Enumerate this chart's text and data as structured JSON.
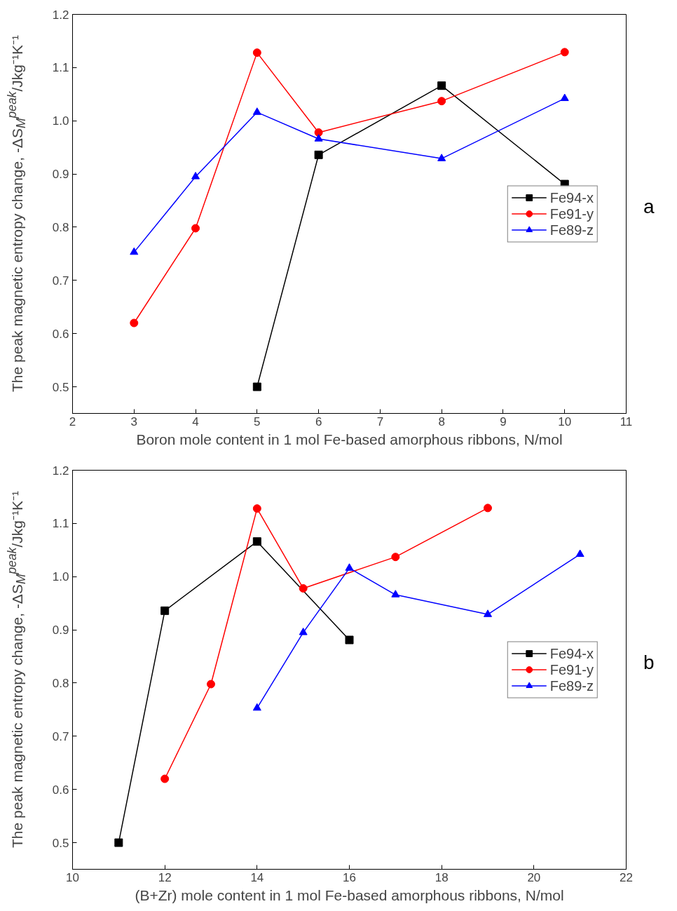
{
  "chart_data": [
    {
      "type": "line",
      "xlabel": "Boron mole content in 1 mol Fe-based amorphous ribbons, N/mol",
      "ylabel": "The peak magnetic entropy change, -ΔS$_{M}$$^{peak}$/Jkg⁻¹K⁻¹",
      "annotations": [
        "a"
      ],
      "xlim": [
        2,
        11
      ],
      "xticks": [
        2,
        3,
        4,
        5,
        6,
        7,
        8,
        9,
        10,
        11
      ],
      "ylim": [
        0.45,
        1.2
      ],
      "yticks": [
        0.5,
        0.6,
        0.7,
        0.8,
        0.9,
        {
          "value": 1,
          "label": "1.0"
        },
        1.1,
        1.2
      ],
      "grid": false,
      "legend": "right",
      "series": [
        {
          "name": "Fe94-x",
          "color": "#000000",
          "marker": "square",
          "x": [
            5,
            6,
            8,
            10
          ],
          "values": [
            0.5,
            0.936,
            1.066,
            0.881
          ]
        },
        {
          "name": "Fe91-y",
          "color": "#ff0000",
          "marker": "circle",
          "x": [
            3,
            4,
            5,
            6,
            8,
            10
          ],
          "values": [
            0.62,
            0.798,
            1.128,
            0.978,
            1.037,
            1.129
          ]
        },
        {
          "name": "Fe89-z",
          "color": "#0000ff",
          "marker": "triangle",
          "x": [
            3,
            4,
            5,
            6,
            8,
            10
          ],
          "values": [
            0.753,
            0.895,
            1.016,
            0.966,
            0.929,
            1.042
          ]
        }
      ]
    },
    {
      "type": "line",
      "xlabel": "(B+Zr) mole content in 1 mol Fe-based amorphous ribbons, N/mol",
      "ylabel": "The peak magnetic entropy change, -ΔS$_{M}$$^{peak}$/Jkg⁻¹K⁻¹",
      "annotations": [
        "b"
      ],
      "xlim": [
        10,
        22
      ],
      "xticks": [
        10,
        12,
        14,
        16,
        18,
        20,
        22
      ],
      "ylim": [
        0.45,
        1.2
      ],
      "yticks": [
        0.5,
        0.6,
        0.7,
        0.8,
        0.9,
        {
          "value": 1,
          "label": "1.0"
        },
        1.1,
        1.2
      ],
      "grid": false,
      "legend": "right",
      "series": [
        {
          "name": "Fe94-x",
          "color": "#000000",
          "marker": "square",
          "x": [
            11,
            12,
            14,
            16
          ],
          "values": [
            0.5,
            0.936,
            1.066,
            0.881
          ]
        },
        {
          "name": "Fe91-y",
          "color": "#ff0000",
          "marker": "circle",
          "x": [
            12,
            13,
            14,
            15,
            17,
            19
          ],
          "values": [
            0.62,
            0.798,
            1.128,
            0.978,
            1.037,
            1.129
          ]
        },
        {
          "name": "Fe89-z",
          "color": "#0000ff",
          "marker": "triangle",
          "x": [
            14,
            15,
            16,
            17,
            19,
            21
          ],
          "values": [
            0.753,
            0.895,
            1.016,
            0.966,
            0.929,
            1.042
          ]
        }
      ]
    }
  ]
}
